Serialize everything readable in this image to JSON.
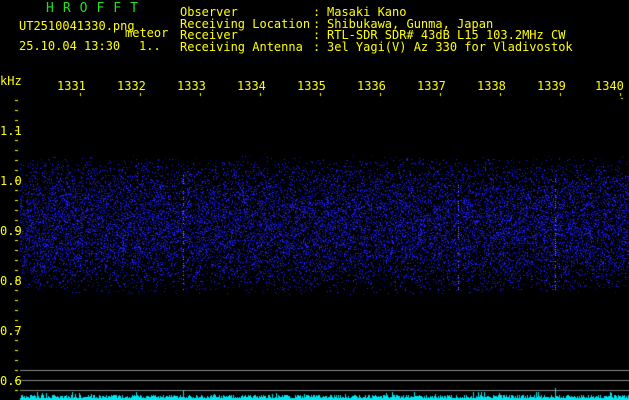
{
  "app": {
    "title": "HROFFT"
  },
  "file": {
    "name": "UT2510041330.png",
    "mode": "meteor",
    "datetime": "25.10.04 13:30",
    "page": "1.."
  },
  "header": {
    "rows": [
      {
        "label": "Observer",
        "value": "Masaki Kano"
      },
      {
        "label": "Receiving Location",
        "value": "Shibukawa, Gunma, Japan"
      },
      {
        "label": "Receiver",
        "value": "RTL-SDR SDR# 43dB L15 103.2MHz CW"
      },
      {
        "label": "Receiving Antenna",
        "value": "3el Yagi(V) Az 330 for Vladivostok"
      }
    ]
  },
  "x_axis": {
    "ticks": [
      "1331",
      "1332",
      "1333",
      "1334",
      "1335",
      "1336",
      "1337",
      "1338",
      "1339",
      "1340"
    ]
  },
  "y_axis": {
    "unit": "kHz",
    "ticks": [
      "1.1",
      "1.0",
      "0.9",
      "0.8",
      "0.7",
      "0.6"
    ]
  },
  "colors": {
    "text": "#ffff00",
    "title": "#22dd22",
    "signal": "#2222ff",
    "spectrum": "#00e5ee",
    "gridline": "#888888"
  }
}
